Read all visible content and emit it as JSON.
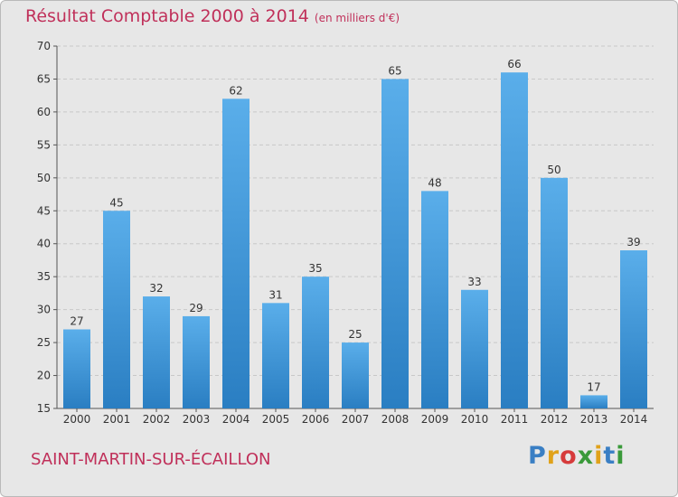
{
  "header": {
    "title": "Résultat Comptable 2000 à 2014",
    "unit": "(en milliers d'€)"
  },
  "footer": {
    "commune": "SAINT-MARTIN-SUR-ÉCAILLON",
    "logo_letters": [
      "P",
      "r",
      "o",
      "x",
      "i",
      "t",
      "i"
    ],
    "logo_colors": [
      "#3a7fc4",
      "#e0a21a",
      "#d63b3b",
      "#3a9a3a",
      "#e0a21a",
      "#3a7fc4",
      "#3a9a3a"
    ]
  },
  "colors": {
    "bar_top": "#5aaeea",
    "bar_bottom": "#2a7ec2",
    "title": "#c0305a"
  },
  "chart_data": {
    "type": "bar",
    "categories": [
      "2000",
      "2001",
      "2002",
      "2003",
      "2004",
      "2005",
      "2006",
      "2007",
      "2008",
      "2009",
      "2010",
      "2011",
      "2012",
      "2013",
      "2014"
    ],
    "values": [
      27,
      45,
      32,
      29,
      62,
      31,
      35,
      25,
      65,
      48,
      33,
      66,
      50,
      17,
      39
    ],
    "y_ticks": [
      15,
      20,
      25,
      30,
      35,
      40,
      45,
      50,
      55,
      60,
      65,
      70
    ],
    "ylim": [
      15,
      70
    ],
    "grid": true,
    "data_labels": true
  }
}
